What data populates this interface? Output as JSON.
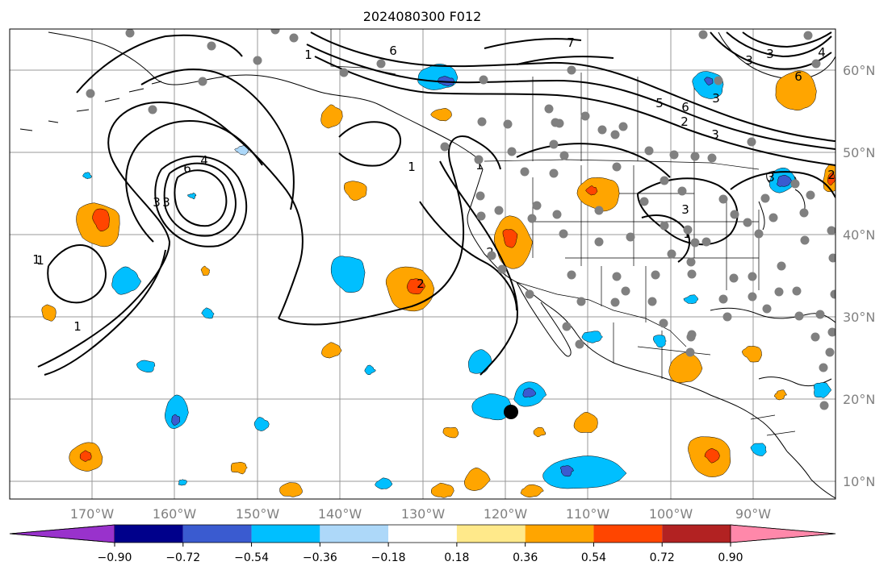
{
  "title": "2024080300 F012",
  "map": {
    "longitude_labels": [
      "170°W",
      "160°W",
      "150°W",
      "140°W",
      "130°W",
      "120°W",
      "110°W",
      "100°W",
      "90°W"
    ],
    "latitude_labels": [
      "60°N",
      "50°N",
      "40°N",
      "30°N",
      "20°N",
      "10°N"
    ],
    "gridlines": true,
    "contour_labels": [
      "1",
      "4",
      "6",
      "3",
      "3",
      "1",
      "1",
      "6",
      "7",
      "3",
      "2",
      "2",
      "3",
      "3",
      "6",
      "4",
      "5",
      "6",
      "3",
      "2",
      "1",
      "3",
      "1",
      "3",
      "2",
      "1",
      "1"
    ],
    "station_color": "#808080",
    "marker_color": "#000000"
  },
  "colorbar": {
    "tick_labels": [
      "−0.90",
      "−0.72",
      "−0.54",
      "−0.36",
      "−0.18",
      "0.18",
      "0.36",
      "0.54",
      "0.72",
      "0.90"
    ],
    "colors": [
      "#9932cc",
      "#00008b",
      "#3a5bd0",
      "#00bfff",
      "#add8f9",
      "#ffffff",
      "#ffe98a",
      "#ffa500",
      "#ff4500",
      "#b22222",
      "#ff88aa"
    ]
  }
}
